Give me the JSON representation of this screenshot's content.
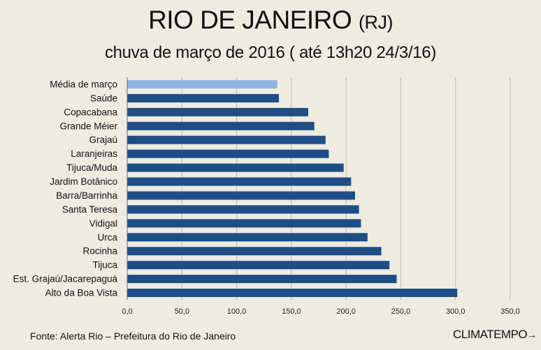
{
  "title": "RIO DE JANEIRO",
  "title_suffix": "(RJ)",
  "subtitle": "chuva de março de 2016 ( até 13h20 24/3/16)",
  "source": "Fonte: Alerta Rio – Prefeitura do Rio de Janeiro",
  "brand": "CLIMATEMPO",
  "brand_mark": "→",
  "colors": {
    "background": "#eeebe1",
    "bar": "#1f4e87",
    "bar_highlight": "#8fb4e3",
    "grid": "#bfbab0",
    "axis": "#6b6b6b"
  },
  "chart_data": {
    "type": "bar",
    "orientation": "horizontal",
    "categories": [
      "Média de março",
      "Saúde",
      "Copacabana",
      "Grande Méier",
      "Grajaú",
      "Laranjeiras",
      "Tijuca/Muda",
      "Jardim Botânico",
      "Barra/Barrinha",
      "Santa Teresa",
      "Vidigal",
      "Urca",
      "Rocinha",
      "Tijuca",
      "Est. Grajaú/Jacarepaguá",
      "Alto da Boa Vista"
    ],
    "values": [
      137.1,
      138.6,
      165.4,
      171.0,
      181.2,
      184.2,
      197.8,
      204.6,
      208.2,
      211.8,
      213.6,
      219.6,
      232.2,
      239.6,
      246.2,
      301.6
    ],
    "highlight_index": 0,
    "xlim": [
      0,
      350
    ],
    "xticks": [
      0,
      50,
      100,
      150,
      200,
      250,
      300,
      350
    ],
    "xtick_labels": [
      "0,0",
      "50,0",
      "100,0",
      "150,0",
      "200,0",
      "250,0",
      "300,0",
      "350,0"
    ],
    "grid": true
  }
}
